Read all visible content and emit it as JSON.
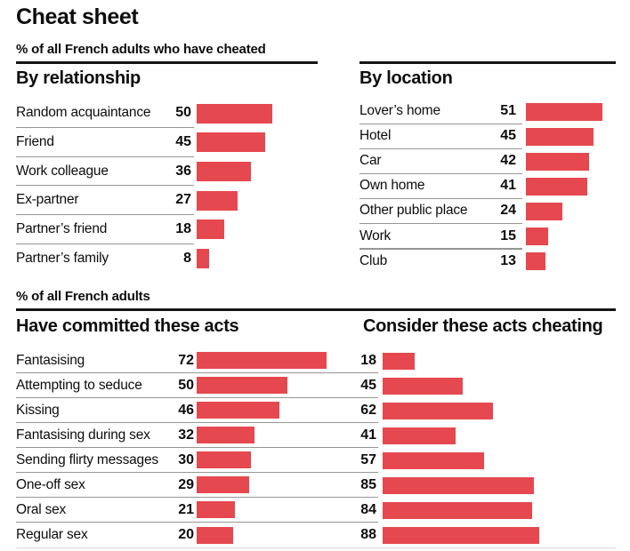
{
  "title": "Cheat sheet",
  "top_section": {
    "subtitle": "% of all French adults who have cheated",
    "by_relationship": {
      "heading": "By relationship",
      "rows": [
        {
          "label": "Random acquaintance",
          "value": 50
        },
        {
          "label": "Friend",
          "value": 45
        },
        {
          "label": "Work colleague",
          "value": 36
        },
        {
          "label": "Ex-partner",
          "value": 27
        },
        {
          "label": "Partner’s friend",
          "value": 18
        },
        {
          "label": "Partner’s family",
          "value": 8
        }
      ]
    },
    "by_location": {
      "heading": "By location",
      "rows": [
        {
          "label": "Lover’s home",
          "value": 51
        },
        {
          "label": "Hotel",
          "value": 45
        },
        {
          "label": "Car",
          "value": 42
        },
        {
          "label": "Own home",
          "value": 41
        },
        {
          "label": "Other public place",
          "value": 24
        },
        {
          "label": "Work",
          "value": 15
        },
        {
          "label": "Club",
          "value": 13
        }
      ]
    }
  },
  "bottom_section": {
    "subtitle": "% of all French adults",
    "committed_heading": "Have committed these acts",
    "considered_heading": "Consider these acts cheating",
    "rows": [
      {
        "label": "Fantasising",
        "committed": 72,
        "considered": 18
      },
      {
        "label": "Attempting to seduce",
        "committed": 50,
        "considered": 45
      },
      {
        "label": "Kissing",
        "committed": 46,
        "considered": 62
      },
      {
        "label": "Fantasising during sex",
        "committed": 32,
        "considered": 41
      },
      {
        "label": "Sending flirty messages",
        "committed": 30,
        "considered": 57
      },
      {
        "label": "One-off sex",
        "committed": 29,
        "considered": 85
      },
      {
        "label": "Oral sex",
        "committed": 21,
        "considered": 84
      },
      {
        "label": "Regular sex",
        "committed": 20,
        "considered": 88
      }
    ]
  },
  "colors": {
    "bar": "#E6484F",
    "rule": "#151515",
    "separator": "#969696",
    "text": "#0D0D0D",
    "baseline": "#D8D8D8"
  },
  "chart_data": [
    {
      "type": "bar",
      "orientation": "horizontal",
      "title": "By relationship",
      "subtitle": "% of all French adults who have cheated",
      "categories": [
        "Random acquaintance",
        "Friend",
        "Work colleague",
        "Ex-partner",
        "Partner’s friend",
        "Partner’s family"
      ],
      "values": [
        50,
        45,
        36,
        27,
        18,
        8
      ],
      "xlim": [
        0,
        60
      ],
      "bar_color": "#E6484F",
      "data_labels": true,
      "grid": false,
      "legend": false
    },
    {
      "type": "bar",
      "orientation": "horizontal",
      "title": "By location",
      "subtitle": "% of all French adults who have cheated",
      "categories": [
        "Lover’s home",
        "Hotel",
        "Car",
        "Own home",
        "Other public place",
        "Work",
        "Club"
      ],
      "values": [
        51,
        45,
        42,
        41,
        24,
        15,
        13
      ],
      "xlim": [
        0,
        60
      ],
      "bar_color": "#E6484F",
      "data_labels": true,
      "grid": false,
      "legend": false
    },
    {
      "type": "bar",
      "orientation": "horizontal",
      "title": "Have committed these acts / Consider these acts cheating",
      "subtitle": "% of all French adults",
      "categories": [
        "Fantasising",
        "Attempting to seduce",
        "Kissing",
        "Fantasising during sex",
        "Sending flirty messages",
        "One-off sex",
        "Oral sex",
        "Regular sex"
      ],
      "series": [
        {
          "name": "Have committed these acts",
          "values": [
            72,
            50,
            46,
            32,
            30,
            29,
            21,
            20
          ]
        },
        {
          "name": "Consider these acts cheating",
          "values": [
            18,
            45,
            62,
            41,
            57,
            85,
            84,
            88
          ]
        }
      ],
      "xlim": [
        0,
        100
      ],
      "bar_color": "#E6484F",
      "data_labels": true,
      "grid": false,
      "legend": false
    }
  ]
}
